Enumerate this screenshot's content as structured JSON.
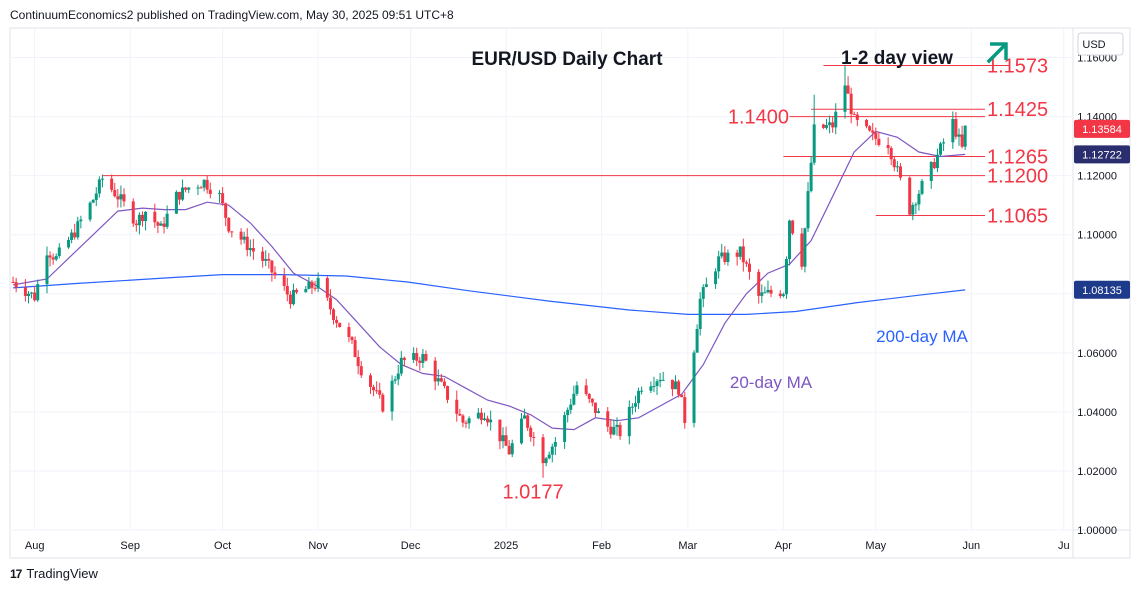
{
  "header": {
    "attribution": "ContinuumEconomics2 published on TradingView.com, May 30, 2025 09:51 UTC+8"
  },
  "footer": {
    "brand": "TradingView",
    "logo_icon": "tradingview-logo-icon"
  },
  "colors": {
    "up": "#089981",
    "down": "#f23645",
    "level": "#f23645",
    "ma20": "#7e57c2",
    "ma200": "#2962ff",
    "arrow": "#089981",
    "last_price": "#f23645",
    "ma20_tag": "#2a2e6e",
    "ma200_tag": "#1e3a8a"
  },
  "chart_data": {
    "type": "candlestick",
    "title": "EUR/USD Daily Chart",
    "subtitle": "1-2 day view",
    "view_icon": "up-arrow-icon",
    "currency": "USD",
    "ylim": [
      1.0,
      1.17
    ],
    "y_ticks": [
      "1.16000",
      "1.14000",
      "1.12000",
      "1.10000",
      "1.08000",
      "1.06000",
      "1.04000",
      "1.02000",
      "1.00000"
    ],
    "x_ticks": [
      "Aug",
      "Sep",
      "Oct",
      "Nov",
      "Dec",
      "2025",
      "Feb",
      "Mar",
      "Apr",
      "May",
      "Jun",
      "Ju"
    ],
    "levels": [
      {
        "label": "1.1573",
        "value": 1.1573,
        "start": "2025-04-14"
      },
      {
        "label": "1.1425",
        "value": 1.1425,
        "start": "2025-04-10"
      },
      {
        "label": "1.1400",
        "value": 1.14,
        "start": "2025-04-03"
      },
      {
        "label": "1.1265",
        "value": 1.1265,
        "start": "2025-04-01"
      },
      {
        "label": "1.1200",
        "value": 1.12,
        "start": "2024-08-23"
      },
      {
        "label": "1.1065",
        "value": 1.1065,
        "start": "2025-05-01"
      }
    ],
    "low_annotation": {
      "label": "1.0177",
      "date": "2025-01-13",
      "value": 1.0177
    },
    "ma_labels": {
      "ma20": "20-day MA",
      "ma200": "200-day MA"
    },
    "price_tags": [
      {
        "label": "1.13584",
        "value": 1.13584,
        "kind": "last"
      },
      {
        "label": "1.12722",
        "value": 1.12722,
        "kind": "ma20"
      },
      {
        "label": "1.08135",
        "value": 1.08135,
        "kind": "ma200"
      }
    ],
    "close_anchors": [
      [
        "2024-07-25",
        1.084
      ],
      [
        "2024-08-01",
        1.079
      ],
      [
        "2024-08-05",
        1.095
      ],
      [
        "2024-08-08",
        1.092
      ],
      [
        "2024-08-14",
        1.101
      ],
      [
        "2024-08-20",
        1.112
      ],
      [
        "2024-08-23",
        1.119
      ],
      [
        "2024-08-28",
        1.113
      ],
      [
        "2024-09-03",
        1.1045
      ],
      [
        "2024-09-06",
        1.108
      ],
      [
        "2024-09-11",
        1.102
      ],
      [
        "2024-09-16",
        1.113
      ],
      [
        "2024-09-20",
        1.116
      ],
      [
        "2024-09-25",
        1.118
      ],
      [
        "2024-09-30",
        1.113
      ],
      [
        "2024-10-03",
        1.103
      ],
      [
        "2024-10-08",
        1.0975
      ],
      [
        "2024-10-15",
        1.0905
      ],
      [
        "2024-10-23",
        1.0785
      ],
      [
        "2024-10-28",
        1.0815
      ],
      [
        "2024-11-01",
        1.0835
      ],
      [
        "2024-11-06",
        1.073
      ],
      [
        "2024-11-12",
        1.0625
      ],
      [
        "2024-11-15",
        1.0545
      ],
      [
        "2024-11-22",
        1.042
      ],
      [
        "2024-11-28",
        1.057
      ],
      [
        "2024-12-05",
        1.0585
      ],
      [
        "2024-12-12",
        1.047
      ],
      [
        "2024-12-18",
        1.0365
      ],
      [
        "2024-12-25",
        1.04
      ],
      [
        "2025-01-02",
        1.0265
      ],
      [
        "2025-01-07",
        1.038
      ],
      [
        "2025-01-13",
        1.0245
      ],
      [
        "2025-01-17",
        1.03
      ],
      [
        "2025-01-24",
        1.049
      ],
      [
        "2025-01-29",
        1.042
      ],
      [
        "2025-02-03",
        1.035
      ],
      [
        "2025-02-07",
        1.033
      ],
      [
        "2025-02-14",
        1.049
      ],
      [
        "2025-02-20",
        1.052
      ],
      [
        "2025-02-26",
        1.048
      ],
      [
        "2025-02-28",
        1.0375
      ],
      [
        "2025-03-05",
        1.078
      ],
      [
        "2025-03-11",
        1.0915
      ],
      [
        "2025-03-18",
        1.094
      ],
      [
        "2025-03-24",
        1.079
      ],
      [
        "2025-03-27",
        1.08
      ],
      [
        "2025-04-01",
        1.081
      ],
      [
        "2025-04-03",
        1.1055
      ],
      [
        "2025-04-07",
        1.091
      ],
      [
        "2025-04-11",
        1.1355
      ],
      [
        "2025-04-17",
        1.137
      ],
      [
        "2025-04-21",
        1.151
      ],
      [
        "2025-04-24",
        1.1385
      ],
      [
        "2025-04-30",
        1.133
      ],
      [
        "2025-05-05",
        1.131
      ],
      [
        "2025-05-12",
        1.1085
      ],
      [
        "2025-05-16",
        1.1165
      ],
      [
        "2025-05-20",
        1.1245
      ],
      [
        "2025-05-26",
        1.138
      ],
      [
        "2025-05-29",
        1.129
      ],
      [
        "2025-05-30",
        1.1358
      ]
    ],
    "extremes": [
      {
        "date": "2025-04-21",
        "high": 1.1573
      },
      {
        "date": "2025-04-11",
        "high": 1.1474
      },
      {
        "date": "2025-01-13",
        "low": 1.0177
      },
      {
        "date": "2025-05-12",
        "low": 1.1065
      }
    ],
    "ma20_series": [
      [
        "2024-07-25",
        1.083
      ],
      [
        "2024-08-05",
        1.085
      ],
      [
        "2024-08-12",
        1.092
      ],
      [
        "2024-08-20",
        1.1
      ],
      [
        "2024-08-28",
        1.108
      ],
      [
        "2024-09-05",
        1.109
      ],
      [
        "2024-09-12",
        1.1085
      ],
      [
        "2024-09-19",
        1.1085
      ],
      [
        "2024-09-26",
        1.111
      ],
      [
        "2024-10-03",
        1.11
      ],
      [
        "2024-10-10",
        1.104
      ],
      [
        "2024-10-17",
        1.096
      ],
      [
        "2024-10-24",
        1.087
      ],
      [
        "2024-10-31",
        1.083
      ],
      [
        "2024-11-07",
        1.078
      ],
      [
        "2024-11-14",
        1.07
      ],
      [
        "2024-11-21",
        1.062
      ],
      [
        "2024-11-28",
        1.056
      ],
      [
        "2024-12-05",
        1.053
      ],
      [
        "2024-12-12",
        1.052
      ],
      [
        "2024-12-19",
        1.048
      ],
      [
        "2024-12-26",
        1.044
      ],
      [
        "2025-01-02",
        1.042
      ],
      [
        "2025-01-09",
        1.039
      ],
      [
        "2025-01-16",
        1.0345
      ],
      [
        "2025-01-23",
        1.034
      ],
      [
        "2025-01-30",
        1.038
      ],
      [
        "2025-02-06",
        1.037
      ],
      [
        "2025-02-13",
        1.038
      ],
      [
        "2025-02-20",
        1.042
      ],
      [
        "2025-02-27",
        1.046
      ],
      [
        "2025-03-06",
        1.056
      ],
      [
        "2025-03-13",
        1.07
      ],
      [
        "2025-03-20",
        1.08
      ],
      [
        "2025-03-27",
        1.087
      ],
      [
        "2025-04-03",
        1.09
      ],
      [
        "2025-04-10",
        1.098
      ],
      [
        "2025-04-17",
        1.113
      ],
      [
        "2025-04-24",
        1.128
      ],
      [
        "2025-05-01",
        1.135
      ],
      [
        "2025-05-08",
        1.133
      ],
      [
        "2025-05-15",
        1.128
      ],
      [
        "2025-05-22",
        1.1265
      ],
      [
        "2025-05-30",
        1.1272
      ]
    ],
    "ma200_series": [
      [
        "2024-07-25",
        1.082
      ],
      [
        "2024-08-15",
        1.0835
      ],
      [
        "2024-09-15",
        1.0855
      ],
      [
        "2024-10-01",
        1.0865
      ],
      [
        "2024-10-20",
        1.0865
      ],
      [
        "2024-11-10",
        1.086
      ],
      [
        "2024-11-30",
        1.084
      ],
      [
        "2024-12-20",
        1.081
      ],
      [
        "2025-01-15",
        1.0775
      ],
      [
        "2025-02-10",
        1.0745
      ],
      [
        "2025-03-01",
        1.073
      ],
      [
        "2025-03-20",
        1.073
      ],
      [
        "2025-04-05",
        1.074
      ],
      [
        "2025-04-25",
        1.077
      ],
      [
        "2025-05-15",
        1.0795
      ],
      [
        "2025-05-30",
        1.0813
      ]
    ]
  }
}
